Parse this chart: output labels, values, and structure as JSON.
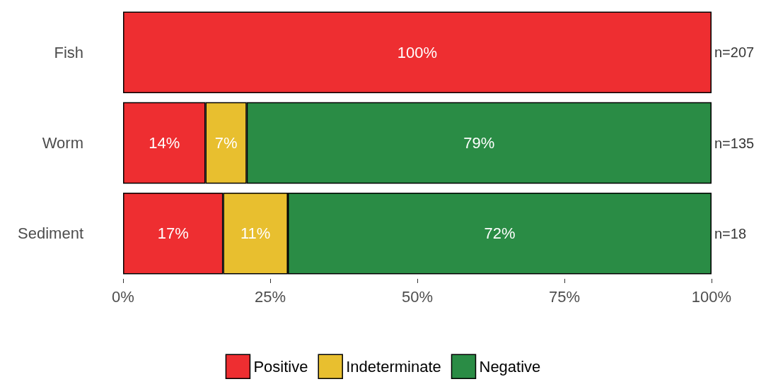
{
  "chart_data": {
    "type": "bar",
    "orientation": "horizontal",
    "stacked": true,
    "categories": [
      "Fish",
      "Worm",
      "Sediment"
    ],
    "series": [
      {
        "name": "Positive",
        "color": "#ee2e31",
        "values": [
          100,
          14,
          17
        ],
        "value_labels": [
          "100%",
          "14%",
          "17%"
        ]
      },
      {
        "name": "Indeterminate",
        "color": "#e8bf2f",
        "values": [
          null,
          7,
          11
        ],
        "value_labels": [
          null,
          "7%",
          "11%"
        ]
      },
      {
        "name": "Negative",
        "color": "#2a8c45",
        "values": [
          null,
          79,
          72
        ],
        "value_labels": [
          null,
          "79%",
          "72%"
        ]
      }
    ],
    "xlim": [
      0,
      100
    ],
    "xticks": [
      {
        "value": 0,
        "label": "0%"
      },
      {
        "value": 25,
        "label": "25%"
      },
      {
        "value": 50,
        "label": "50%"
      },
      {
        "value": 75,
        "label": "75%"
      },
      {
        "value": 100,
        "label": "100%"
      }
    ],
    "annotations": [
      "n=207",
      "n=135",
      "n=18"
    ],
    "grid": false,
    "legend": "bottom"
  }
}
